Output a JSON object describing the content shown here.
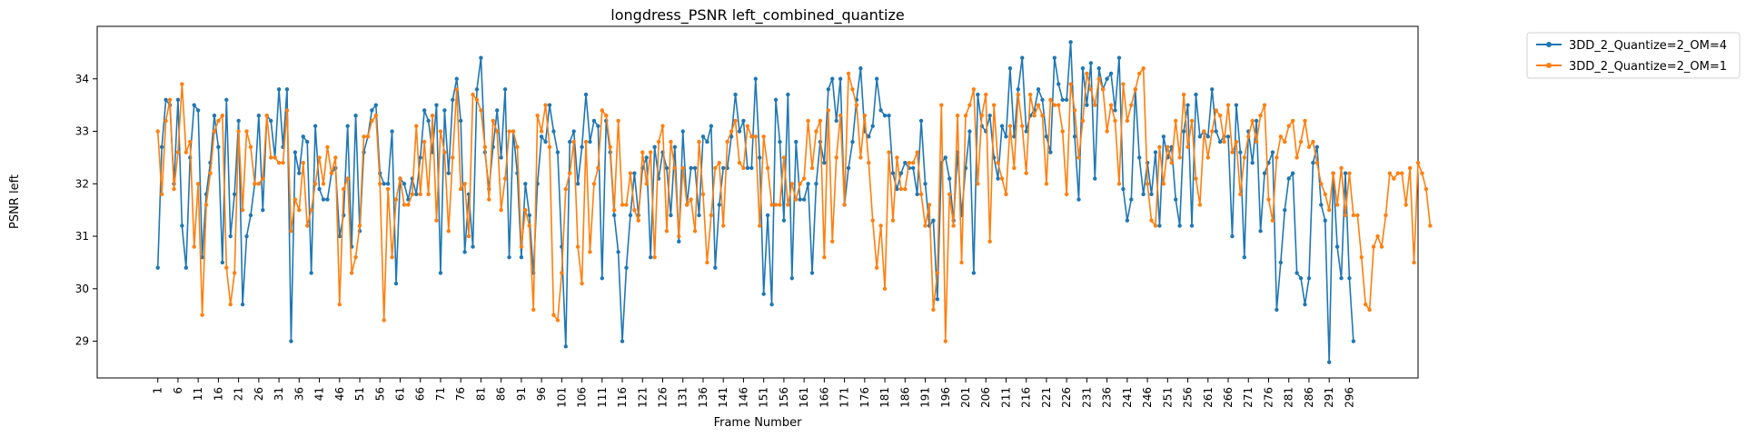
{
  "chart_data": {
    "type": "line",
    "title": "longdress_PSNR left_combined_quantize",
    "xlabel": "Frame Number",
    "ylabel": "PSNR left",
    "xlim": [
      -14,
      313
    ],
    "ylim": [
      28.3,
      35.0
    ],
    "x_ticks": [
      1,
      6,
      11,
      16,
      21,
      26,
      31,
      36,
      41,
      46,
      51,
      56,
      61,
      66,
      71,
      76,
      81,
      86,
      91,
      96,
      101,
      106,
      111,
      116,
      121,
      126,
      131,
      136,
      141,
      146,
      151,
      156,
      161,
      166,
      171,
      176,
      181,
      186,
      191,
      196,
      201,
      206,
      211,
      216,
      221,
      226,
      231,
      236,
      241,
      246,
      251,
      256,
      261,
      266,
      271,
      276,
      281,
      286,
      291,
      296
    ],
    "y_ticks": [
      29,
      30,
      31,
      32,
      33,
      34
    ],
    "grid": false,
    "legend_position": "outside-top-right",
    "x_start": 1,
    "series": [
      {
        "name": "3DD_2_Quantize=2_OM=4",
        "color": "#1f77b4",
        "values": [
          30.4,
          32.7,
          33.6,
          33.5,
          32.0,
          33.6,
          31.2,
          30.4,
          32.5,
          33.5,
          33.4,
          30.6,
          31.8,
          32.4,
          33.3,
          32.7,
          30.5,
          33.6,
          31.0,
          31.8,
          33.2,
          29.7,
          31.0,
          31.4,
          32.0,
          33.3,
          31.5,
          33.3,
          33.2,
          32.5,
          33.8,
          32.7,
          33.8,
          29.0,
          32.6,
          32.2,
          32.9,
          32.8,
          30.3,
          33.1,
          31.9,
          31.7,
          31.7,
          32.2,
          32.3,
          31.0,
          31.4,
          33.1,
          30.8,
          33.3,
          31.1,
          32.6,
          32.9,
          33.4,
          33.5,
          32.2,
          32.0,
          32.0,
          33.0,
          30.1,
          32.1,
          32.0,
          31.7,
          32.1,
          31.8,
          32.5,
          33.4,
          33.2,
          32.6,
          33.5,
          30.3,
          33.4,
          32.2,
          33.6,
          34.0,
          33.2,
          30.7,
          31.8,
          30.8,
          33.8,
          34.4,
          32.6,
          31.9,
          32.7,
          33.4,
          32.5,
          33.8,
          30.6,
          33.0,
          32.2,
          30.6,
          32.0,
          31.4,
          30.3,
          32.0,
          32.9,
          32.8,
          33.5,
          33.0,
          32.6,
          30.8,
          28.9,
          32.8,
          33.0,
          32.0,
          32.7,
          33.7,
          32.8,
          33.2,
          33.1,
          30.2,
          33.2,
          32.6,
          31.4,
          30.7,
          29.0,
          30.4,
          31.4,
          32.2,
          31.4,
          32.3,
          32.5,
          30.6,
          32.7,
          32.1,
          32.6,
          32.3,
          31.4,
          32.7,
          30.9,
          33.0,
          31.6,
          32.3,
          32.3,
          31.4,
          32.9,
          32.8,
          33.1,
          30.4,
          31.6,
          32.3,
          32.3,
          32.9,
          33.7,
          33.0,
          33.2,
          32.3,
          32.3,
          34.0,
          32.5,
          29.9,
          31.4,
          29.7,
          33.6,
          32.8,
          31.3,
          33.7,
          30.2,
          32.8,
          31.7,
          31.7,
          32.0,
          30.3,
          32.0,
          32.8,
          32.4,
          33.8,
          34.0,
          33.2,
          34.0,
          31.6,
          32.3,
          32.8,
          33.6,
          34.2,
          33.0,
          32.9,
          33.1,
          34.0,
          33.4,
          33.3,
          33.3,
          32.2,
          31.9,
          32.2,
          32.4,
          32.3,
          32.3,
          31.8,
          33.2,
          32.0,
          31.2,
          31.3,
          29.8,
          32.4,
          32.5,
          32.1,
          31.3,
          32.6,
          31.4,
          32.3,
          33.0,
          30.3,
          33.7,
          33.1,
          33.0,
          33.3,
          32.5,
          32.1,
          33.1,
          32.9,
          34.2,
          32.9,
          33.8,
          34.4,
          33.0,
          33.3,
          33.4,
          33.8,
          33.6,
          32.9,
          32.6,
          34.4,
          33.9,
          33.6,
          33.6,
          34.7,
          32.9,
          31.7,
          34.2,
          33.5,
          34.3,
          32.1,
          34.2,
          33.8,
          34.0,
          34.1,
          33.4,
          34.4,
          31.9,
          31.3,
          31.7,
          33.8,
          32.5,
          31.8,
          32.4,
          31.8,
          32.6,
          31.2,
          32.9,
          32.5,
          32.7,
          31.7,
          31.2,
          33.0,
          33.5,
          31.2,
          33.7,
          32.9,
          33.0,
          32.9,
          33.8,
          33.0,
          32.8,
          32.9,
          32.9,
          31.0,
          33.5,
          32.6,
          30.6,
          33.0,
          32.4,
          33.2,
          31.1,
          32.2,
          32.4,
          32.6,
          29.6,
          30.5,
          31.5,
          32.1,
          32.2,
          30.3,
          30.2,
          29.7,
          30.2,
          32.4,
          32.7,
          31.6,
          31.3,
          28.6,
          32.2,
          30.8,
          30.2,
          32.2,
          30.2,
          29.0
        ]
      },
      {
        "name": "3DD_2_Quantize=2_OM=1",
        "color": "#ff7f0e",
        "values": [
          33.0,
          31.8,
          33.2,
          33.6,
          31.9,
          32.6,
          33.9,
          32.6,
          32.8,
          30.8,
          32.0,
          29.5,
          31.6,
          32.2,
          33.0,
          33.2,
          33.3,
          30.4,
          29.7,
          30.3,
          33.0,
          31.5,
          33.0,
          32.7,
          32.0,
          32.0,
          32.1,
          33.3,
          32.5,
          32.5,
          32.4,
          32.4,
          33.4,
          31.1,
          31.7,
          31.5,
          32.4,
          31.2,
          31.5,
          32.0,
          32.5,
          32.0,
          32.7,
          32.2,
          32.5,
          29.7,
          31.9,
          32.1,
          30.3,
          30.6,
          31.2,
          32.9,
          32.9,
          33.2,
          33.3,
          32.0,
          29.4,
          31.9,
          30.6,
          31.7,
          32.1,
          31.6,
          31.6,
          31.8,
          33.1,
          31.8,
          32.8,
          31.8,
          33.3,
          31.3,
          33.0,
          32.6,
          31.1,
          32.5,
          33.8,
          31.9,
          32.0,
          31.0,
          33.7,
          33.6,
          33.4,
          32.7,
          31.7,
          33.2,
          33.0,
          31.5,
          32.1,
          33.0,
          33.0,
          32.7,
          30.8,
          31.5,
          31.2,
          29.6,
          33.3,
          33.0,
          33.5,
          32.7,
          29.5,
          29.4,
          30.3,
          31.9,
          32.2,
          32.8,
          30.8,
          30.1,
          32.8,
          30.7,
          32.0,
          32.3,
          33.4,
          33.3,
          32.7,
          31.5,
          33.2,
          31.6,
          31.6,
          32.2,
          31.5,
          31.3,
          32.6,
          32.0,
          32.6,
          30.6,
          32.8,
          33.1,
          31.1,
          32.8,
          32.3,
          31.0,
          32.3,
          31.6,
          31.7,
          31.1,
          32.8,
          31.8,
          30.5,
          31.4,
          32.3,
          32.4,
          31.2,
          32.8,
          33.0,
          33.2,
          32.4,
          32.3,
          33.1,
          32.9,
          32.9,
          31.2,
          32.9,
          32.3,
          31.6,
          31.6,
          31.6,
          32.5,
          31.6,
          32.0,
          31.7,
          32.0,
          32.1,
          33.2,
          32.3,
          33.0,
          33.2,
          30.6,
          33.4,
          30.9,
          32.5,
          33.3,
          31.6,
          34.1,
          33.8,
          33.5,
          32.5,
          33.3,
          32.4,
          31.3,
          30.4,
          31.2,
          30.0,
          32.6,
          31.3,
          32.5,
          31.9,
          31.9,
          32.4,
          32.4,
          32.6,
          31.8,
          31.2,
          31.6,
          29.6,
          30.3,
          33.5,
          29.0,
          31.8,
          31.2,
          33.3,
          30.5,
          33.3,
          33.5,
          33.8,
          32.0,
          33.3,
          33.7,
          30.9,
          33.5,
          32.4,
          32.1,
          31.8,
          33.1,
          32.3,
          33.7,
          33.1,
          32.2,
          33.7,
          33.3,
          33.5,
          33.3,
          32.0,
          33.6,
          33.5,
          33.5,
          33.0,
          31.8,
          33.9,
          33.4,
          32.5,
          33.2,
          34.1,
          33.8,
          33.5,
          34.0,
          33.8,
          33.0,
          33.5,
          33.2,
          32.0,
          33.9,
          33.2,
          33.5,
          33.8,
          34.1,
          34.2,
          32.0,
          31.3,
          31.2,
          32.7,
          32.0,
          32.7,
          32.4,
          33.2,
          32.5,
          33.7,
          32.7,
          33.2,
          32.1,
          31.6,
          33.0,
          32.5,
          33.0,
          33.4,
          33.3,
          32.8,
          33.5,
          32.6,
          32.8,
          31.8,
          32.5,
          32.9,
          33.2,
          32.8,
          33.3,
          33.5,
          31.7,
          31.3,
          32.5,
          32.9,
          32.8,
          33.1,
          33.2,
          32.5,
          32.8,
          33.2,
          32.7,
          32.8,
          32.4,
          32.0,
          31.8,
          31.5,
          32.2,
          31.6,
          32.3,
          31.4,
          32.2,
          31.4,
          31.4,
          30.6,
          29.7,
          29.6,
          30.8,
          31.0,
          30.8,
          31.4,
          32.2,
          32.1,
          32.2,
          32.2,
          31.6,
          32.3,
          30.5,
          32.4,
          32.2,
          31.9,
          31.2
        ]
      }
    ]
  }
}
